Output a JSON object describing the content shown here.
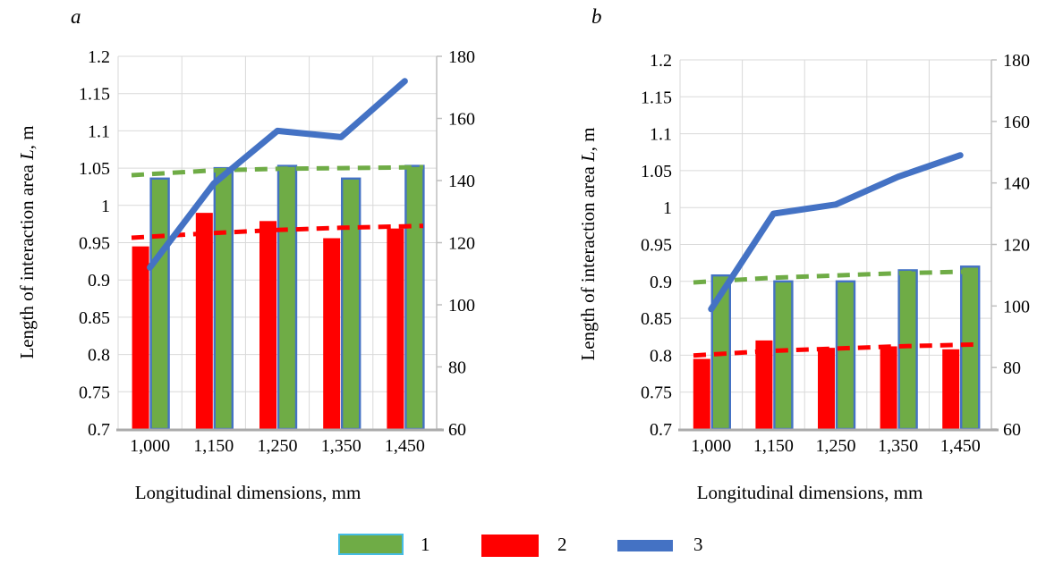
{
  "chart_data": [
    {
      "panel_letter": "a",
      "type": "bar+line",
      "categories": [
        "1,000",
        "1,150",
        "1,250",
        "1,350",
        "1,450"
      ],
      "xlabel": "Longitudinal dimensions, mm",
      "ylabel": "Length of interaction area L, m",
      "ylabel_parts": [
        {
          "t": "Length of interaction area ",
          "italic": false
        },
        {
          "t": "L",
          "italic": true
        },
        {
          "t": ", m",
          "italic": false
        }
      ],
      "left_axis": {
        "min": 0.7,
        "max": 1.2,
        "step": 0.05,
        "tick_labels": [
          "1.2",
          "1.15",
          "1.1",
          "1.05",
          "1",
          "0.95",
          "0.9",
          "0.85",
          "0.8",
          "0.75",
          "0.7"
        ]
      },
      "right_axis": {
        "min": 60,
        "max": 180,
        "step": 20,
        "tick_labels": [
          "180",
          "160",
          "140",
          "120",
          "100",
          "80",
          "60"
        ]
      },
      "grid": true,
      "series": [
        {
          "name": "1",
          "type": "bar",
          "axis": "left",
          "color": "#6FAC46",
          "border_color": "#4472C4",
          "values": [
            1.036,
            1.05,
            1.053,
            1.036,
            1.053
          ]
        },
        {
          "name": "2",
          "type": "bar",
          "axis": "left",
          "color": "#FF0000",
          "values": [
            0.945,
            0.99,
            0.979,
            0.956,
            0.969
          ]
        },
        {
          "name": "trend-of-1",
          "type": "dashed_line",
          "axis": "left",
          "color": "#6FAC46",
          "values": [
            1.042,
            1.047,
            1.049,
            1.05,
            1.051
          ]
        },
        {
          "name": "trend-of-2",
          "type": "dashed_line",
          "axis": "left",
          "color": "#FF0000",
          "values": [
            0.958,
            0.963,
            0.967,
            0.97,
            0.972
          ]
        },
        {
          "name": "3",
          "type": "line",
          "axis": "right",
          "color": "#4472C4",
          "values": [
            112,
            139,
            156,
            154,
            172
          ]
        }
      ]
    },
    {
      "panel_letter": "b",
      "type": "bar+line",
      "categories": [
        "1,000",
        "1,150",
        "1,250",
        "1,350",
        "1,450"
      ],
      "xlabel": "Longitudinal dimensions, mm",
      "ylabel": "Length of interaction area L, m",
      "ylabel_parts": [
        {
          "t": "Length of interaction area ",
          "italic": false
        },
        {
          "t": "L",
          "italic": true
        },
        {
          "t": ", m",
          "italic": false
        }
      ],
      "left_axis": {
        "min": 0.7,
        "max": 1.2,
        "step": 0.05,
        "tick_labels": [
          "1.2",
          "1.15",
          "1.1",
          "1.05",
          "1",
          "0.95",
          "0.9",
          "0.85",
          "0.8",
          "0.75",
          "0.7"
        ]
      },
      "right_axis": {
        "min": 60,
        "max": 180,
        "step": 20,
        "tick_labels": [
          "180",
          "160",
          "140",
          "120",
          "100",
          "80",
          "60"
        ]
      },
      "grid": true,
      "series": [
        {
          "name": "1",
          "type": "bar",
          "axis": "left",
          "color": "#6FAC46",
          "border_color": "#4472C4",
          "values": [
            0.908,
            0.9,
            0.9,
            0.915,
            0.92
          ]
        },
        {
          "name": "2",
          "type": "bar",
          "axis": "left",
          "color": "#FF0000",
          "values": [
            0.795,
            0.82,
            0.81,
            0.812,
            0.808
          ]
        },
        {
          "name": "trend-of-1",
          "type": "dashed_line",
          "axis": "left",
          "color": "#6FAC46",
          "values": [
            0.9,
            0.905,
            0.908,
            0.911,
            0.913
          ]
        },
        {
          "name": "trend-of-2",
          "type": "dashed_line",
          "axis": "left",
          "color": "#FF0000",
          "values": [
            0.801,
            0.806,
            0.809,
            0.812,
            0.814
          ]
        },
        {
          "name": "3",
          "type": "line",
          "axis": "right",
          "color": "#4472C4",
          "values": [
            99,
            130,
            133,
            142,
            149
          ]
        }
      ]
    }
  ],
  "legend": {
    "items": [
      {
        "label": "1",
        "shape": "box",
        "color": "#6FAC46",
        "border_color": "#45BCE4"
      },
      {
        "label": "2",
        "shape": "box",
        "color": "#FF0000"
      },
      {
        "label": "3",
        "shape": "line",
        "color": "#4472C4"
      }
    ]
  },
  "colors": {
    "grid": "#D9D9D9",
    "axis_bottom": "#ABABAB",
    "axis_right": "#BFBFBF",
    "text": "#000000"
  }
}
